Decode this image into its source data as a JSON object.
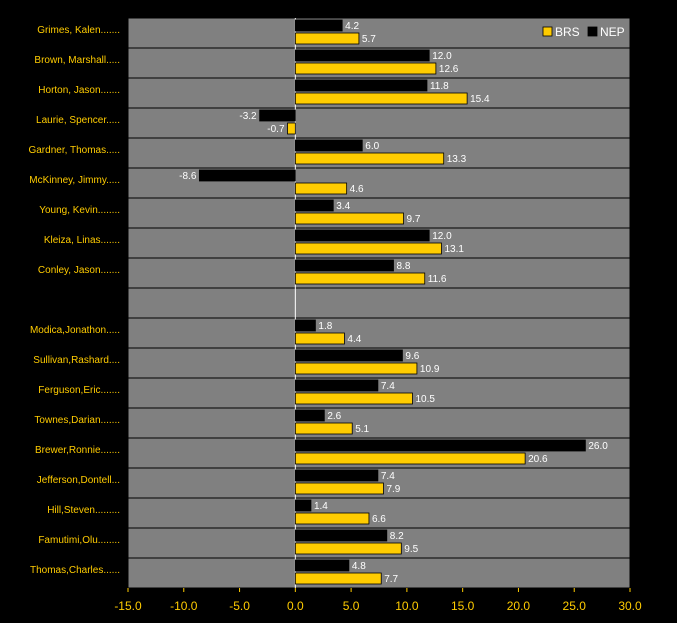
{
  "chart_data": {
    "type": "bar",
    "orientation": "horizontal",
    "categories": [
      "Grimes, Kalen.......",
      "Brown, Marshall.....",
      "Horton, Jason.......",
      "Laurie, Spencer.....",
      "Gardner, Thomas.....",
      "McKinney, Jimmy.....",
      "Young, Kevin........",
      "Kleiza, Linas.......",
      "Conley, Jason.......",
      "",
      "Modica,Jonathon.....",
      "Sullivan,Rashard....",
      "Ferguson,Eric.......",
      "Townes,Darian.......",
      "Brewer,Ronnie.......",
      "Jefferson,Dontell...",
      "Hill,Steven.........",
      "Famutimi,Olu........",
      "Thomas,Charles......"
    ],
    "series": [
      {
        "name": "NEP",
        "color": "#000000",
        "values": [
          4.2,
          12.0,
          11.8,
          -3.2,
          6.0,
          -8.6,
          3.4,
          12.0,
          8.8,
          null,
          1.8,
          9.6,
          7.4,
          2.6,
          26.0,
          7.4,
          1.4,
          8.2,
          4.8
        ],
        "labels": [
          "4.2",
          "12.0",
          "11.8",
          "-3.2",
          "6.0",
          "-8.6",
          "3.4",
          "12.0",
          "8.8",
          "",
          "1.8",
          "9.6",
          "7.4",
          "2.6",
          "26.0",
          "7.4",
          "1.4",
          "8.2",
          "4.8"
        ]
      },
      {
        "name": "BRS",
        "color": "#FFCC00",
        "values": [
          5.7,
          12.6,
          15.4,
          -0.7,
          13.3,
          4.6,
          9.7,
          13.1,
          11.6,
          null,
          4.4,
          10.9,
          10.5,
          5.1,
          20.6,
          7.9,
          6.6,
          9.5,
          7.7
        ],
        "labels": [
          "5.7",
          "12.6",
          "15.4",
          "-0.7",
          "13.3",
          "4.6",
          "9.7",
          "13.1",
          "11.6",
          "",
          "4.4",
          "10.9",
          "10.5",
          "5.1",
          "20.6",
          "7.9",
          "6.6",
          "9.5",
          "7.7"
        ]
      }
    ],
    "xlim": [
      -15,
      30
    ],
    "xticks": [
      -15,
      -10,
      -5,
      0,
      5,
      10,
      15,
      20,
      25,
      30
    ],
    "xtick_labels": [
      "-15.0",
      "-10.0",
      "-5.0",
      "0.0",
      "5.0",
      "10.0",
      "15.0",
      "20.0",
      "25.0",
      "30.0"
    ],
    "legend": {
      "position": "top-right",
      "items": [
        "BRS",
        "NEP"
      ]
    },
    "grid": "horizontal",
    "title": "",
    "xlabel": "",
    "ylabel": "",
    "colors": {
      "background": "#000000",
      "plot": "#808080",
      "text": "#FFCC00",
      "value_text": "#FFFFFF",
      "zero_line": "#FFFFFF"
    }
  }
}
